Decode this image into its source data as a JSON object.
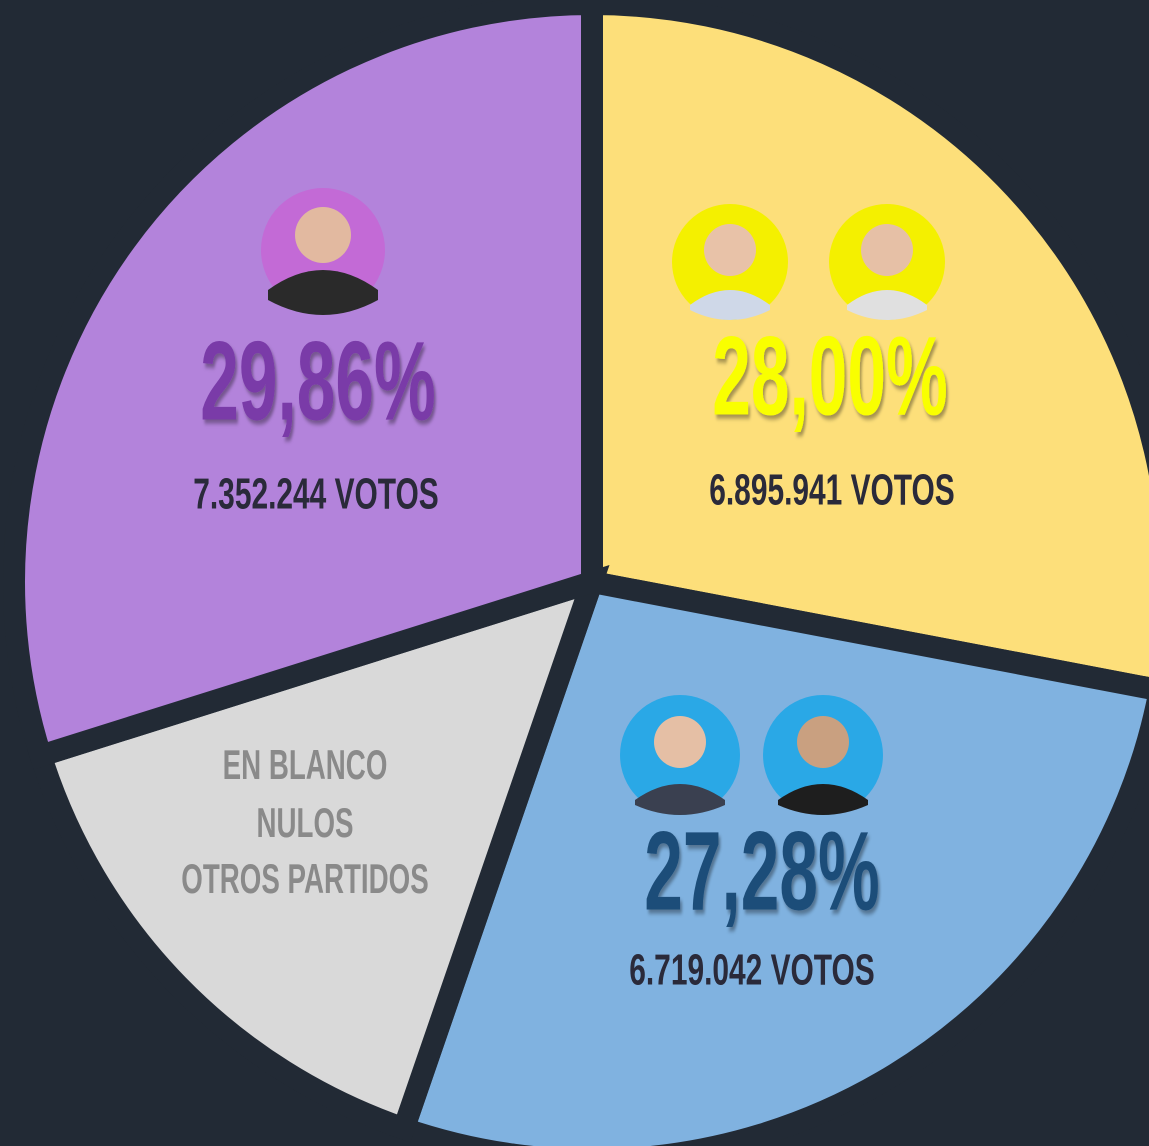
{
  "chart_data": {
    "type": "pie",
    "values": [
      28.0,
      27.28,
      14.86,
      29.86
    ],
    "value_labels": [
      "28,00%",
      "27,28%",
      null,
      "29,86%"
    ],
    "vote_labels": [
      "6.895.941 VOTOS",
      "6.719.042 VOTOS",
      null,
      "7.352.244 VOTOS"
    ],
    "colors": [
      "#fddf7a",
      "#80b2e0",
      "#d9d9d9",
      "#b383db"
    ],
    "label_colors": [
      "#f9ff00",
      "#1f4e79",
      "#8a8a8a",
      "#7a3aa8"
    ],
    "other_label_lines": [
      "EN BLANCO",
      "NULOS",
      "OTROS PARTIDOS"
    ]
  }
}
